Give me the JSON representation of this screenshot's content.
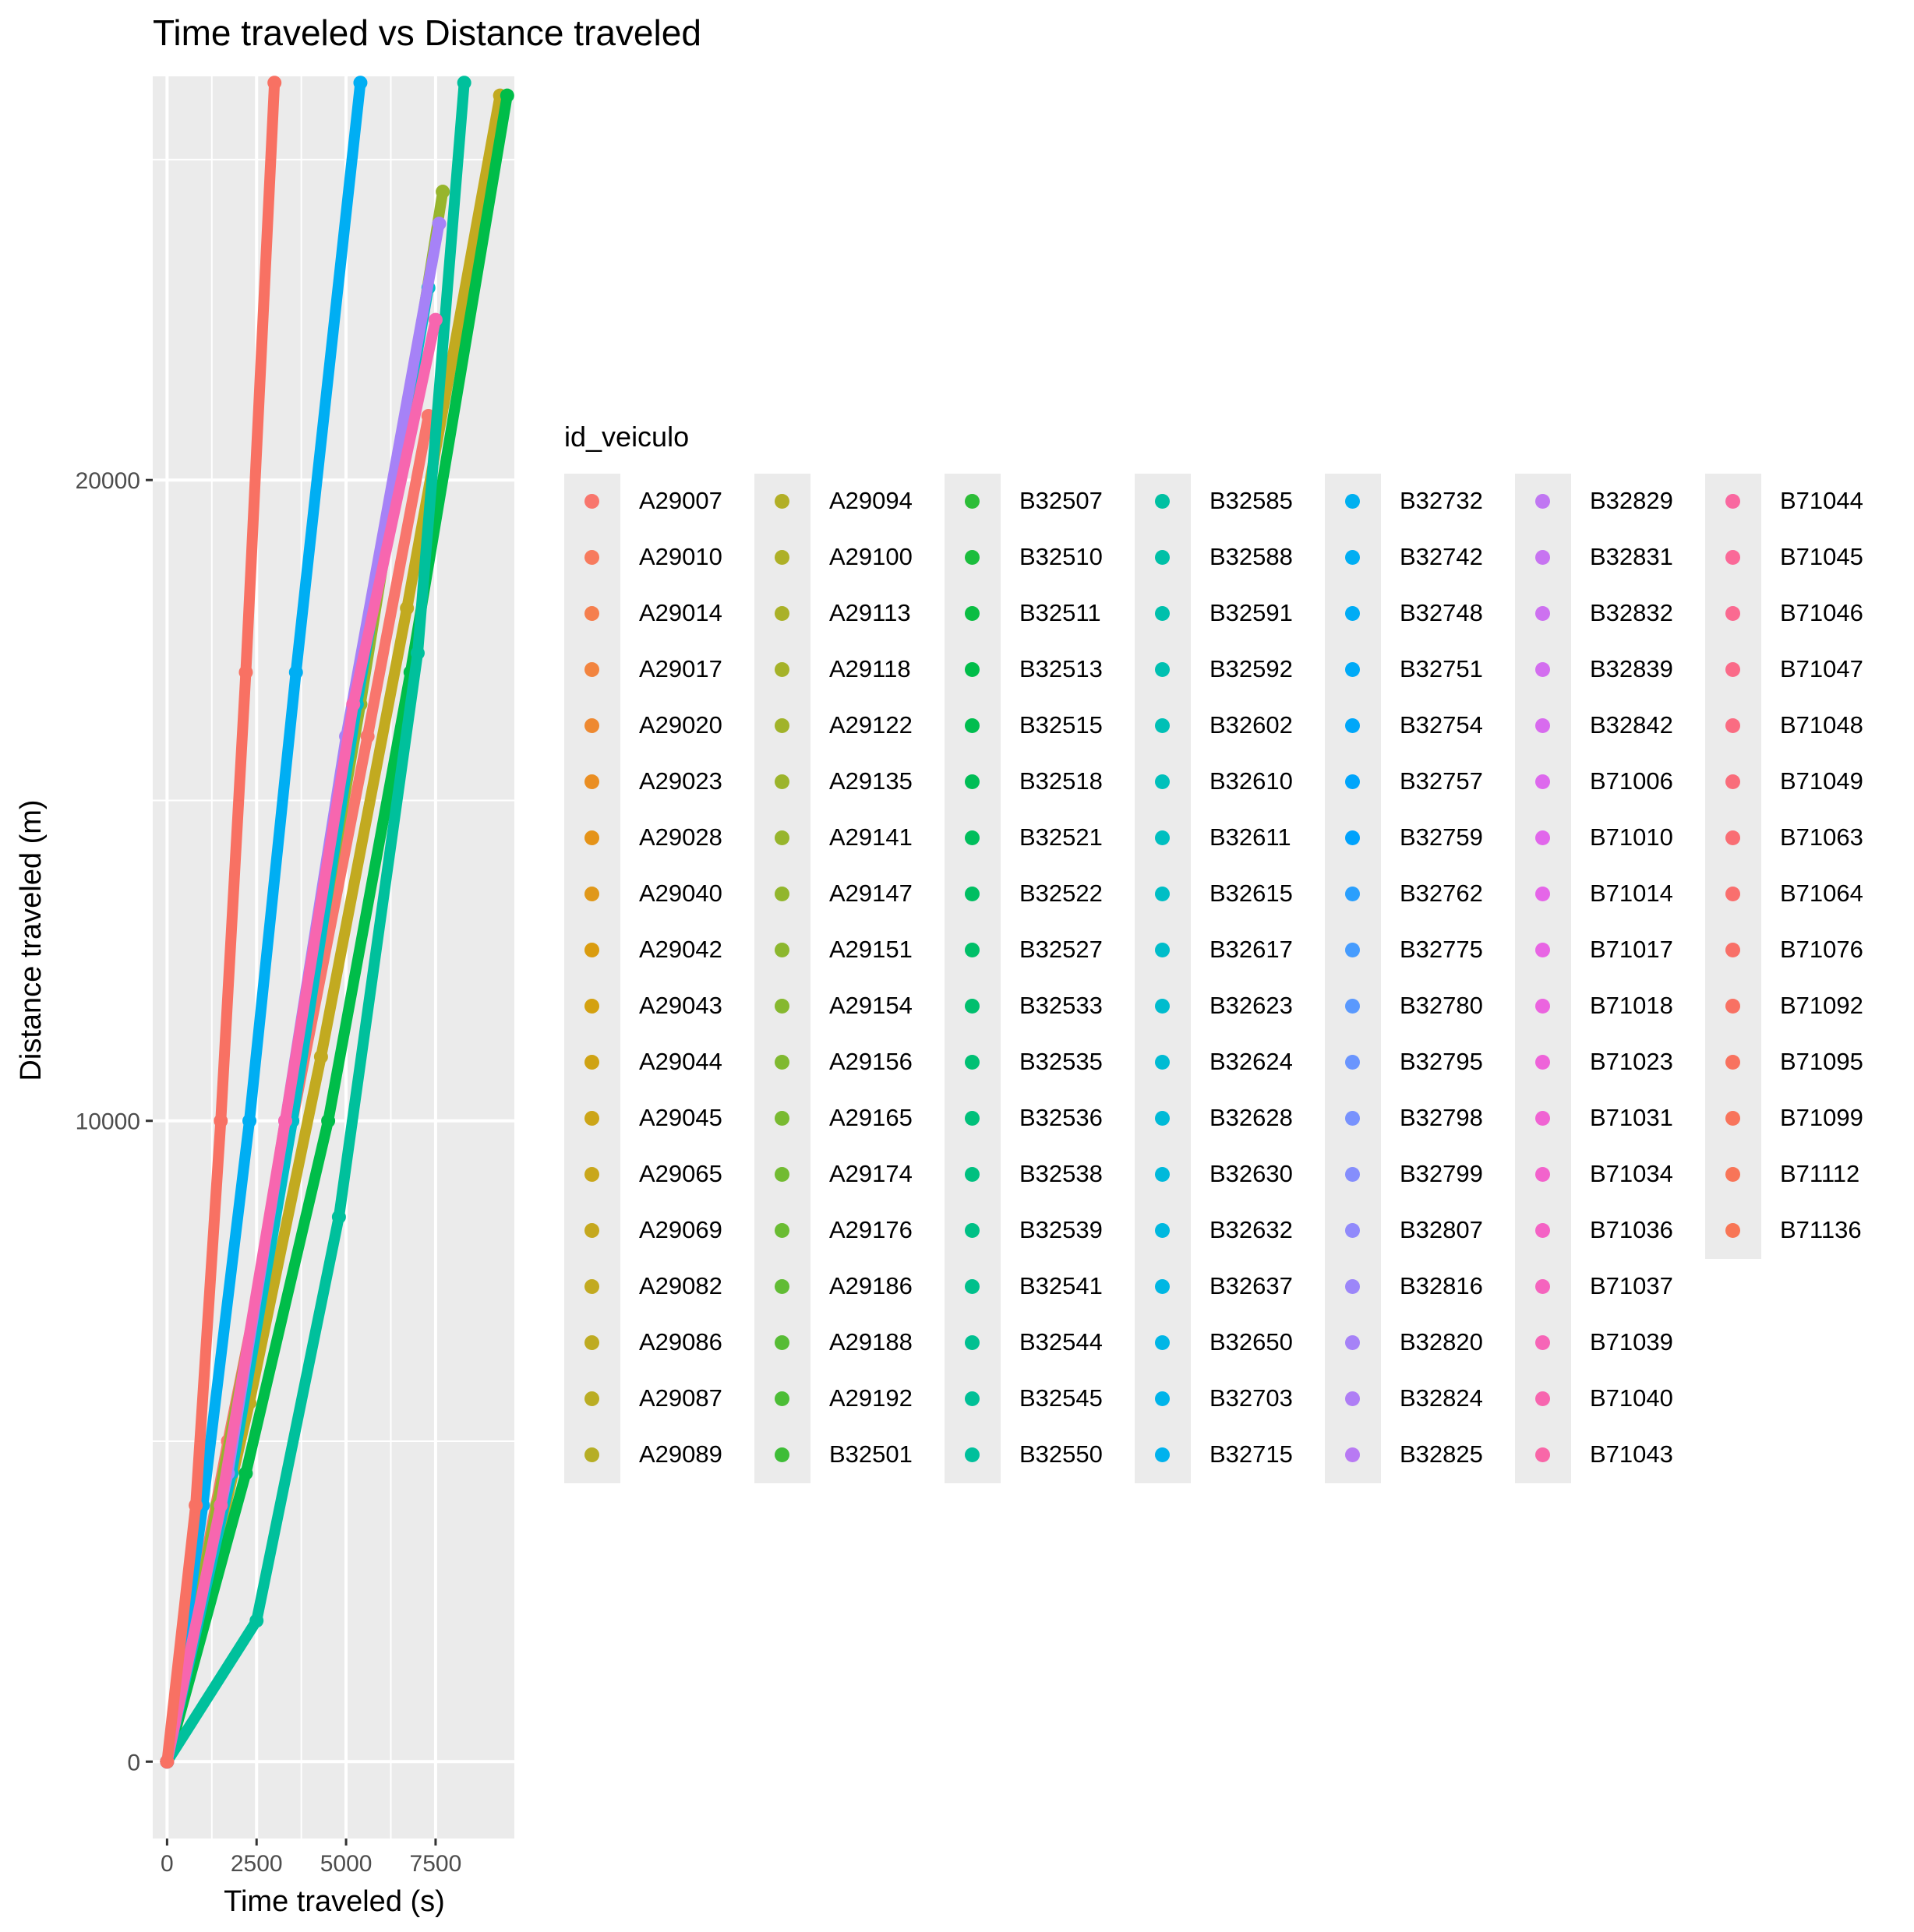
{
  "chart_data": {
    "type": "scatter",
    "title": "Time traveled vs Distance traveled",
    "xlabel": "Time traveled (s)",
    "ylabel": "Distance traveled (m)",
    "xlim": [
      -400,
      9700
    ],
    "ylim": [
      -1200,
      26300
    ],
    "x_ticks": [
      0,
      2500,
      5000,
      7500
    ],
    "x_tick_labels": [
      "0",
      "2500",
      "5000",
      "7500"
    ],
    "y_ticks": [
      0,
      10000,
      20000
    ],
    "y_tick_labels": [
      "0",
      "10000",
      "20000"
    ],
    "grid": true,
    "background": "#ebebeb",
    "legend_position": "right",
    "legend": {
      "title": "id_veiculo",
      "columns": 7,
      "rows": 18,
      "entries": [
        {
          "label": "A29007",
          "color": "#F8766D"
        },
        {
          "label": "A29010",
          "color": "#F77B5E"
        },
        {
          "label": "A29014",
          "color": "#F57F4E"
        },
        {
          "label": "A29017",
          "color": "#F2843F"
        },
        {
          "label": "A29020",
          "color": "#EE8931"
        },
        {
          "label": "A29023",
          "color": "#EA8E22"
        },
        {
          "label": "A29028",
          "color": "#E59318"
        },
        {
          "label": "A29040",
          "color": "#E0981A"
        },
        {
          "label": "A29042",
          "color": "#DA9C0F"
        },
        {
          "label": "A29043",
          "color": "#D4A110"
        },
        {
          "label": "A29044",
          "color": "#CFA314"
        },
        {
          "label": "A29045",
          "color": "#CCA518"
        },
        {
          "label": "A29065",
          "color": "#C9A71B"
        },
        {
          "label": "A29069",
          "color": "#C5A81E"
        },
        {
          "label": "A29082",
          "color": "#C2AA20"
        },
        {
          "label": "A29086",
          "color": "#BEAB22"
        },
        {
          "label": "A29087",
          "color": "#BAAD24"
        },
        {
          "label": "A29089",
          "color": "#B6AE25"
        },
        {
          "label": "A29094",
          "color": "#B2AF26"
        },
        {
          "label": "A29100",
          "color": "#AEB027"
        },
        {
          "label": "A29113",
          "color": "#AAB128"
        },
        {
          "label": "A29118",
          "color": "#A5B229"
        },
        {
          "label": "A29122",
          "color": "#A1B32A"
        },
        {
          "label": "A29135",
          "color": "#9CB42B"
        },
        {
          "label": "A29141",
          "color": "#97B52C"
        },
        {
          "label": "A29147",
          "color": "#92B62D"
        },
        {
          "label": "A29151",
          "color": "#8CB72E"
        },
        {
          "label": "A29154",
          "color": "#86B82F"
        },
        {
          "label": "A29156",
          "color": "#80B930"
        },
        {
          "label": "A29165",
          "color": "#79BA31"
        },
        {
          "label": "A29174",
          "color": "#72BB32"
        },
        {
          "label": "A29176",
          "color": "#6ABC33"
        },
        {
          "label": "A29186",
          "color": "#61BC34"
        },
        {
          "label": "A29188",
          "color": "#57BC35"
        },
        {
          "label": "A29192",
          "color": "#4CBD36"
        },
        {
          "label": "B32501",
          "color": "#3EBD37"
        },
        {
          "label": "B32507",
          "color": "#2DBD38"
        },
        {
          "label": "B32510",
          "color": "#1BBD3D"
        },
        {
          "label": "B32511",
          "color": "#0BBD43"
        },
        {
          "label": "B32513",
          "color": "#00BD49"
        },
        {
          "label": "B32515",
          "color": "#00BD4F"
        },
        {
          "label": "B32518",
          "color": "#00BD56"
        },
        {
          "label": "B32521",
          "color": "#00BE5C"
        },
        {
          "label": "B32522",
          "color": "#00BE62"
        },
        {
          "label": "B32527",
          "color": "#00BF68"
        },
        {
          "label": "B32533",
          "color": "#00BF6E"
        },
        {
          "label": "B32535",
          "color": "#00C074"
        },
        {
          "label": "B32536",
          "color": "#00C07A"
        },
        {
          "label": "B32538",
          "color": "#00C080"
        },
        {
          "label": "B32539",
          "color": "#00C086"
        },
        {
          "label": "B32541",
          "color": "#00C08C"
        },
        {
          "label": "B32544",
          "color": "#00C091"
        },
        {
          "label": "B32545",
          "color": "#00C097"
        },
        {
          "label": "B32550",
          "color": "#00C09C"
        },
        {
          "label": "B32585",
          "color": "#00C0A2"
        },
        {
          "label": "B32588",
          "color": "#00C0A7"
        },
        {
          "label": "B32591",
          "color": "#00C0AC"
        },
        {
          "label": "B32592",
          "color": "#00C0B1"
        },
        {
          "label": "B32602",
          "color": "#00C0B6"
        },
        {
          "label": "B32610",
          "color": "#00C0BB"
        },
        {
          "label": "B32611",
          "color": "#00BFC0"
        },
        {
          "label": "B32615",
          "color": "#00BEC5"
        },
        {
          "label": "B32617",
          "color": "#00BDCA"
        },
        {
          "label": "B32623",
          "color": "#00BCCE"
        },
        {
          "label": "B32624",
          "color": "#00BBD3"
        },
        {
          "label": "B32628",
          "color": "#00BAD7"
        },
        {
          "label": "B32630",
          "color": "#00B9DB"
        },
        {
          "label": "B32632",
          "color": "#00B8DF"
        },
        {
          "label": "B32637",
          "color": "#00B7E3"
        },
        {
          "label": "B32650",
          "color": "#00B6E6"
        },
        {
          "label": "B32703",
          "color": "#00B4EA"
        },
        {
          "label": "B32715",
          "color": "#00B2ED"
        },
        {
          "label": "B32732",
          "color": "#00B0F0"
        },
        {
          "label": "B32742",
          "color": "#00AEF3"
        },
        {
          "label": "B32748",
          "color": "#00ACF5"
        },
        {
          "label": "B32751",
          "color": "#00AAF7"
        },
        {
          "label": "B32754",
          "color": "#00A7F9"
        },
        {
          "label": "B32757",
          "color": "#00A5FB"
        },
        {
          "label": "B32759",
          "color": "#00A2FC"
        },
        {
          "label": "B32762",
          "color": "#2A9FFD"
        },
        {
          "label": "B32775",
          "color": "#469CFE"
        },
        {
          "label": "B32780",
          "color": "#5A99FE"
        },
        {
          "label": "B32795",
          "color": "#6A95FE"
        },
        {
          "label": "B32798",
          "color": "#7892FD"
        },
        {
          "label": "B32799",
          "color": "#858EFC"
        },
        {
          "label": "B32807",
          "color": "#918AFB"
        },
        {
          "label": "B32816",
          "color": "#9C86F9"
        },
        {
          "label": "B32820",
          "color": "#A682F7"
        },
        {
          "label": "B32824",
          "color": "#AF7EF5"
        },
        {
          "label": "B32825",
          "color": "#B87AF3"
        },
        {
          "label": "B32829",
          "color": "#C077F2"
        },
        {
          "label": "B32831",
          "color": "#C774F1"
        },
        {
          "label": "B32832",
          "color": "#CD71F0"
        },
        {
          "label": "B32839",
          "color": "#D36EEF"
        },
        {
          "label": "B32842",
          "color": "#D86BEE"
        },
        {
          "label": "B71006",
          "color": "#DD69ED"
        },
        {
          "label": "B71010",
          "color": "#E167EB"
        },
        {
          "label": "B71014",
          "color": "#E566E8"
        },
        {
          "label": "B71017",
          "color": "#E865E4"
        },
        {
          "label": "B71018",
          "color": "#EB64DF"
        },
        {
          "label": "B71023",
          "color": "#EE63D9"
        },
        {
          "label": "B71031",
          "color": "#F063D3"
        },
        {
          "label": "B71034",
          "color": "#F263CC"
        },
        {
          "label": "B71036",
          "color": "#F463C5"
        },
        {
          "label": "B71037",
          "color": "#F564BE"
        },
        {
          "label": "B71039",
          "color": "#F665B7"
        },
        {
          "label": "B71040",
          "color": "#F766AF"
        },
        {
          "label": "B71043",
          "color": "#F867A8"
        },
        {
          "label": "B71044",
          "color": "#F968A0"
        },
        {
          "label": "B71045",
          "color": "#FA6998"
        },
        {
          "label": "B71046",
          "color": "#FA6A91"
        },
        {
          "label": "B71047",
          "color": "#FA6B89"
        },
        {
          "label": "B71048",
          "color": "#FA6C82"
        },
        {
          "label": "B71049",
          "color": "#F96D7B"
        },
        {
          "label": "B71063",
          "color": "#F96E74"
        },
        {
          "label": "B71064",
          "color": "#F96F6E"
        },
        {
          "label": "B71076",
          "color": "#F87068"
        },
        {
          "label": "B71092",
          "color": "#F87163"
        },
        {
          "label": "B71095",
          "color": "#F8725F"
        },
        {
          "label": "B71099",
          "color": "#F8745B"
        },
        {
          "label": "B71112",
          "color": "#F87558"
        },
        {
          "label": "B71136",
          "color": "#F87656"
        }
      ]
    },
    "series": [
      {
        "id": "A29007",
        "x": [
          0,
          1700,
          3500,
          5600,
          7300
        ],
        "y": [
          0,
          5000,
          10000,
          16000,
          21000
        ]
      },
      {
        "id": "A29082",
        "x": [
          0,
          2300,
          4300,
          6700,
          9300
        ],
        "y": [
          0,
          5600,
          11000,
          18000,
          26000
        ]
      },
      {
        "id": "A29141",
        "x": [
          0,
          1400,
          3100,
          5400,
          7700
        ],
        "y": [
          0,
          4000,
          9000,
          16500,
          24500
        ]
      },
      {
        "id": "B32513",
        "x": [
          0,
          2200,
          4500,
          6800,
          9500
        ],
        "y": [
          0,
          4500,
          10000,
          17000,
          26000
        ]
      },
      {
        "id": "B32550",
        "x": [
          0,
          2500,
          4800,
          7000,
          8300
        ],
        "y": [
          0,
          2200,
          8500,
          17300,
          26200
        ]
      },
      {
        "id": "B32617",
        "x": [
          0,
          1800,
          3500,
          5300,
          7300
        ],
        "y": [
          0,
          4500,
          10000,
          16500,
          23000
        ]
      },
      {
        "id": "B32742",
        "x": [
          0,
          1000,
          2300,
          3600,
          5400
        ],
        "y": [
          0,
          4000,
          10000,
          17000,
          26200
        ]
      },
      {
        "id": "B32820",
        "x": [
          0,
          1700,
          3300,
          5000,
          7600
        ],
        "y": [
          0,
          4500,
          10000,
          16000,
          24000
        ]
      },
      {
        "id": "B71040",
        "x": [
          0,
          1500,
          3300,
          5200,
          7500
        ],
        "y": [
          0,
          4000,
          10000,
          16500,
          22500
        ]
      },
      {
        "id": "B71092",
        "x": [
          0,
          800,
          1500,
          2200,
          3000
        ],
        "y": [
          0,
          4000,
          10000,
          17000,
          26200
        ]
      }
    ]
  }
}
